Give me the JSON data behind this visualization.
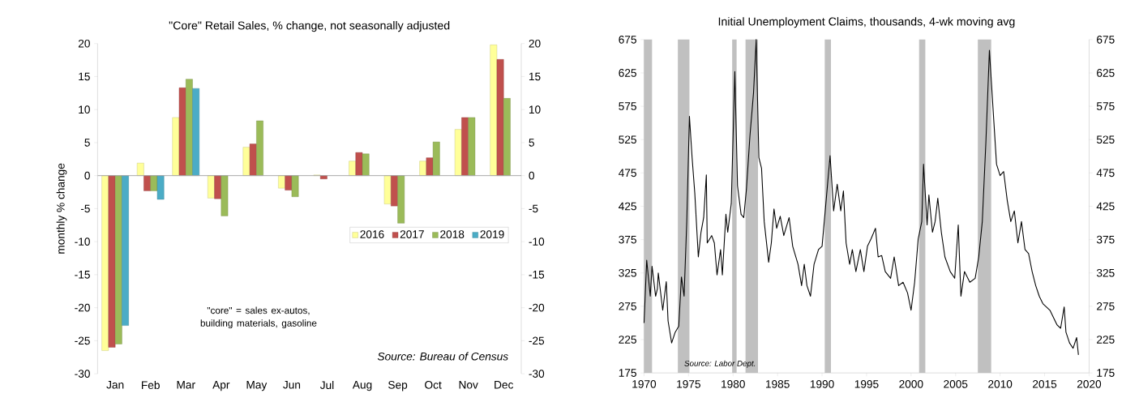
{
  "chart_data": [
    {
      "type": "bar",
      "title": "\"Core\" Retail Sales, % change, not seasonally adjusted",
      "ylabel": "monthly % change",
      "categories": [
        "Jan",
        "Feb",
        "Mar",
        "Apr",
        "May",
        "Jun",
        "Jul",
        "Aug",
        "Sep",
        "Oct",
        "Nov",
        "Dec"
      ],
      "series": [
        {
          "name": "2016",
          "color": "#ffff99",
          "values": [
            -26.5,
            1.9,
            8.8,
            -3.4,
            4.3,
            -1.9,
            0.1,
            2.2,
            -4.3,
            2.2,
            7.0,
            19.8
          ]
        },
        {
          "name": "2017",
          "color": "#c0504d",
          "values": [
            -26.0,
            -2.3,
            13.3,
            -3.5,
            4.8,
            -2.2,
            -0.5,
            3.5,
            -4.6,
            2.7,
            8.8,
            17.6
          ]
        },
        {
          "name": "2018",
          "color": "#9bbb59",
          "values": [
            -25.5,
            -2.3,
            14.6,
            -6.1,
            8.3,
            -3.2,
            null,
            3.3,
            -7.2,
            5.1,
            8.8,
            11.7
          ]
        },
        {
          "name": "2019",
          "color": "#4bacc6",
          "values": [
            -22.7,
            -3.6,
            13.2,
            null,
            null,
            null,
            null,
            null,
            null,
            null,
            null,
            null
          ]
        }
      ],
      "ylim": [
        -30,
        20
      ],
      "yticks": [
        -30,
        -25,
        -20,
        -15,
        -10,
        -5,
        0,
        5,
        10,
        15,
        20
      ],
      "y2lim": [
        -30,
        20
      ],
      "y2ticks": [
        -30,
        -25,
        -20,
        -15,
        -10,
        -5,
        0,
        5,
        10,
        15,
        20
      ],
      "legend": "right",
      "annotations": [
        "\"core\" = sales ex-autos, building materials, gasoline",
        "Source: Bureau of Census"
      ]
    },
    {
      "type": "line",
      "title": "Initial Unemployment Claims, thousands, 4-wk moving avg",
      "series": [
        {
          "color": "#000000",
          "x": [
            1970.0,
            1970.3,
            1970.7,
            1970.9,
            1971.3,
            1971.5,
            1971.6,
            1972.1,
            1972.5,
            1972.7,
            1973.1,
            1973.5,
            1973.9,
            1974.2,
            1974.5,
            1974.8,
            1975.1,
            1975.4,
            1975.7,
            1976.1,
            1976.4,
            1976.7,
            1977.0,
            1977.1,
            1977.6,
            1977.9,
            1978.2,
            1978.6,
            1978.8,
            1979.2,
            1979.4,
            1979.8,
            1980.2,
            1980.5,
            1980.9,
            1981.2,
            1981.5,
            1981.9,
            1982.3,
            1982.6,
            1982.9,
            1983.2,
            1983.5,
            1984.0,
            1984.3,
            1984.6,
            1984.9,
            1985.3,
            1985.7,
            1986.3,
            1986.7,
            1987.3,
            1987.7,
            1988.0,
            1988.3,
            1988.7,
            1989.1,
            1989.6,
            1990.0,
            1990.5,
            1990.9,
            1991.3,
            1991.7,
            1992.1,
            1992.4,
            1992.7,
            1993.1,
            1993.4,
            1993.8,
            1994.3,
            1994.7,
            1995.1,
            1995.5,
            1996.0,
            1996.3,
            1996.7,
            1997.1,
            1997.7,
            1998.1,
            1998.6,
            1999.1,
            1999.6,
            2000.0,
            2000.4,
            2000.8,
            2001.2,
            2001.4,
            2001.8,
            2002.0,
            2002.4,
            2002.7,
            2003.0,
            2003.4,
            2003.8,
            2004.4,
            2004.9,
            2005.3,
            2005.6,
            2006.0,
            2006.6,
            2007.2,
            2007.6,
            2008.0,
            2008.4,
            2008.8,
            2009.2,
            2009.6,
            2010.0,
            2010.4,
            2010.8,
            2011.2,
            2011.6,
            2012.0,
            2012.4,
            2012.8,
            2013.2,
            2013.6,
            2014.0,
            2014.4,
            2014.8,
            2015.2,
            2015.6,
            2016.0,
            2016.4,
            2016.8,
            2017.2,
            2017.4,
            2017.8,
            2018.2,
            2018.6,
            2018.8
          ],
          "values": [
            250,
            344,
            290,
            335,
            290,
            301,
            325,
            269,
            312,
            253,
            220,
            236,
            245,
            319,
            290,
            402,
            560,
            498,
            445,
            349,
            386,
            408,
            472,
            370,
            381,
            370,
            322,
            360,
            322,
            413,
            386,
            429,
            627,
            456,
            413,
            408,
            450,
            531,
            595,
            675,
            498,
            482,
            402,
            341,
            370,
            421,
            392,
            410,
            381,
            408,
            365,
            338,
            306,
            338,
            306,
            290,
            338,
            360,
            365,
            440,
            501,
            418,
            458,
            418,
            448,
            370,
            338,
            360,
            327,
            360,
            327,
            365,
            376,
            392,
            349,
            351,
            327,
            317,
            349,
            306,
            311,
            295,
            269,
            311,
            376,
            402,
            488,
            397,
            442,
            386,
            402,
            437,
            386,
            349,
            327,
            317,
            397,
            290,
            327,
            311,
            317,
            349,
            402,
            520,
            659,
            573,
            488,
            471,
            477,
            434,
            402,
            418,
            370,
            402,
            360,
            354,
            327,
            306,
            290,
            279,
            274,
            269,
            258,
            247,
            242,
            274,
            236,
            220,
            212,
            228,
            202
          ]
        }
      ],
      "xlim": [
        1970,
        2020
      ],
      "xticks": [
        1970,
        1975,
        1980,
        1985,
        1990,
        1995,
        2000,
        2005,
        2010,
        2015,
        2020
      ],
      "ylim": [
        175,
        675
      ],
      "yticks": [
        175,
        225,
        275,
        325,
        375,
        425,
        475,
        525,
        575,
        625,
        675
      ],
      "y2lim": [
        175,
        675
      ],
      "y2ticks": [
        175,
        225,
        275,
        325,
        375,
        425,
        475,
        525,
        575,
        625,
        675
      ],
      "bands": [
        {
          "axis": "x",
          "from": 1970.0,
          "to": 1970.9,
          "color": "#c0c0c0"
        },
        {
          "axis": "x",
          "from": 1973.8,
          "to": 1975.1,
          "color": "#c0c0c0"
        },
        {
          "axis": "x",
          "from": 1979.9,
          "to": 1980.4,
          "color": "#c0c0c0"
        },
        {
          "axis": "x",
          "from": 1981.4,
          "to": 1982.8,
          "color": "#c0c0c0"
        },
        {
          "axis": "x",
          "from": 1990.3,
          "to": 1991.0,
          "color": "#c0c0c0"
        },
        {
          "axis": "x",
          "from": 2000.9,
          "to": 2001.6,
          "color": "#c0c0c0"
        },
        {
          "axis": "x",
          "from": 2007.5,
          "to": 2009.0,
          "color": "#c0c0c0"
        }
      ],
      "annotations": [
        "Source: Labor Dept."
      ]
    }
  ]
}
